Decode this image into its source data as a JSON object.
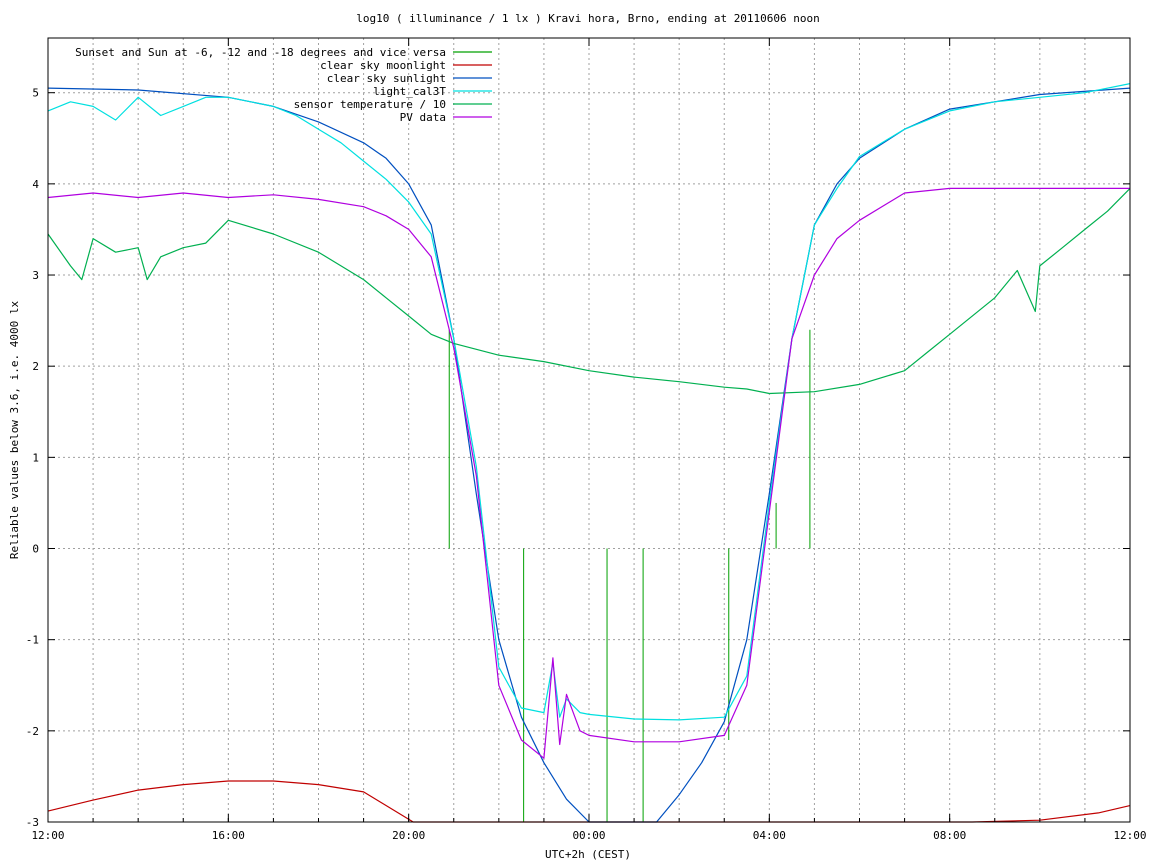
{
  "chart_data": {
    "type": "line",
    "title": "log10 ( illuminance / 1 lx ) Kravi hora, Brno, ending at 20110606 noon",
    "xlabel": "UTC+2h (CEST)",
    "ylabel": "Reliable values below 3.6, i.e. 4000 lx",
    "xlim": [
      0,
      24
    ],
    "ylim": [
      -3,
      5.6
    ],
    "grid": true,
    "legend_position": "top-left",
    "x_ticks": [
      {
        "value": 0,
        "label": "12:00"
      },
      {
        "value": 4,
        "label": "16:00"
      },
      {
        "value": 8,
        "label": "20:00"
      },
      {
        "value": 12,
        "label": "00:00"
      },
      {
        "value": 16,
        "label": "04:00"
      },
      {
        "value": 20,
        "label": "08:00"
      },
      {
        "value": 24,
        "label": "12:00"
      }
    ],
    "y_ticks": [
      {
        "value": 5,
        "label": "5"
      },
      {
        "value": 4,
        "label": "4"
      },
      {
        "value": 3,
        "label": "3"
      },
      {
        "value": 2,
        "label": "2"
      },
      {
        "value": 1,
        "label": "1"
      },
      {
        "value": 0,
        "label": "0"
      },
      {
        "value": -1,
        "label": "-1"
      },
      {
        "value": -2,
        "label": "-2"
      },
      {
        "value": -3,
        "label": "-3"
      }
    ],
    "x_minor_grid_step": 1,
    "series": [
      {
        "name": "Sunset and Sun at -6, -12 and -18 degrees and vice versa",
        "color": "#00a000",
        "style": "impulses",
        "x": [
          8.9,
          10.55,
          12.4,
          13.2,
          15.1,
          16.15,
          16.9
        ],
        "values": [
          0,
          0,
          0,
          0,
          0,
          0,
          0
        ],
        "tops": [
          2.4,
          0,
          0,
          0,
          0,
          0.5,
          2.4
        ],
        "bottoms": [
          0,
          -3,
          -3,
          -3,
          -2.1,
          0,
          0
        ]
      },
      {
        "name": "clear sky moonlight",
        "color": "#c00000",
        "style": "line",
        "x": [
          0,
          1,
          2,
          3,
          4,
          5,
          6,
          7,
          8.1,
          20.5,
          22,
          23.3,
          24
        ],
        "values": [
          -2.88,
          -2.76,
          -2.65,
          -2.59,
          -2.55,
          -2.55,
          -2.59,
          -2.67,
          -3.0,
          -3.0,
          -2.98,
          -2.9,
          -2.82
        ]
      },
      {
        "name": "clear sky sunlight",
        "color": "#0050c0",
        "style": "line",
        "x": [
          0,
          2,
          4,
          5,
          6,
          7,
          7.5,
          8,
          8.5,
          9,
          9.5,
          10,
          10.5,
          11,
          11.5,
          12,
          12.4,
          13.5,
          14,
          14.5,
          15,
          15.5,
          16,
          16.5,
          17,
          17.5,
          18,
          19,
          20,
          22,
          24
        ],
        "values": [
          5.05,
          5.03,
          4.95,
          4.85,
          4.68,
          4.45,
          4.28,
          4.0,
          3.55,
          2.3,
          0.6,
          -1.0,
          -1.85,
          -2.35,
          -2.75,
          -3.0,
          -3.0,
          -3.0,
          -2.7,
          -2.35,
          -1.9,
          -1.0,
          0.6,
          2.3,
          3.55,
          4.0,
          4.28,
          4.6,
          4.82,
          4.98,
          5.05
        ]
      },
      {
        "name": "light_cal3T",
        "color": "#00e0e0",
        "style": "line",
        "x": [
          0,
          0.5,
          1,
          1.5,
          2,
          2.5,
          3,
          3.5,
          4,
          4.5,
          5,
          5.5,
          6,
          6.5,
          7,
          7.5,
          8,
          8.5,
          9,
          9.5,
          10,
          10.5,
          11,
          11.2,
          11.35,
          11.5,
          11.8,
          12,
          13,
          14,
          15,
          15.5,
          16,
          16.5,
          17,
          17.5,
          18,
          18.5,
          19,
          20,
          21,
          22,
          23,
          24
        ],
        "values": [
          4.8,
          4.9,
          4.85,
          4.7,
          4.95,
          4.75,
          4.85,
          4.95,
          4.95,
          4.9,
          4.85,
          4.75,
          4.6,
          4.45,
          4.25,
          4.05,
          3.8,
          3.45,
          2.3,
          0.9,
          -1.3,
          -1.75,
          -1.8,
          -1.25,
          -1.85,
          -1.65,
          -1.8,
          -1.82,
          -1.87,
          -1.88,
          -1.85,
          -1.4,
          0.5,
          2.3,
          3.55,
          3.95,
          4.3,
          4.45,
          4.6,
          4.8,
          4.9,
          4.95,
          5.0,
          5.1
        ]
      },
      {
        "name": "sensor temperature / 10",
        "color": "#00b050",
        "style": "line",
        "x": [
          0,
          0.5,
          0.75,
          1,
          1.5,
          2,
          2.2,
          2.5,
          3,
          3.5,
          4,
          5,
          6,
          6.5,
          7,
          7.5,
          8,
          8.5,
          9,
          10,
          11,
          12,
          13,
          14,
          15,
          15.5,
          16,
          17,
          18,
          19,
          19.5,
          20,
          21,
          21.5,
          21.9,
          22,
          22.5,
          23,
          23.5,
          24
        ],
        "values": [
          3.45,
          3.1,
          2.95,
          3.4,
          3.25,
          3.3,
          2.95,
          3.2,
          3.3,
          3.35,
          3.6,
          3.45,
          3.25,
          3.1,
          2.95,
          2.75,
          2.55,
          2.35,
          2.25,
          2.12,
          2.05,
          1.95,
          1.88,
          1.83,
          1.77,
          1.75,
          1.7,
          1.72,
          1.8,
          1.95,
          2.15,
          2.35,
          2.75,
          3.05,
          2.6,
          3.1,
          3.3,
          3.5,
          3.7,
          3.95
        ]
      },
      {
        "name": "PV data",
        "color": "#b000e0",
        "style": "line",
        "x": [
          0,
          1,
          2,
          3,
          4,
          5,
          6,
          7,
          7.5,
          8,
          8.5,
          9,
          9.5,
          10,
          10.5,
          11,
          11.2,
          11.35,
          11.5,
          11.8,
          12,
          13,
          14,
          15,
          15.5,
          16,
          16.5,
          17,
          17.5,
          18,
          19,
          20,
          21,
          22,
          23,
          24
        ],
        "values": [
          3.85,
          3.9,
          3.85,
          3.9,
          3.85,
          3.88,
          3.83,
          3.75,
          3.65,
          3.5,
          3.2,
          2.2,
          0.8,
          -1.5,
          -2.1,
          -2.3,
          -1.2,
          -2.15,
          -1.6,
          -2.0,
          -2.05,
          -2.12,
          -2.12,
          -2.05,
          -1.5,
          0.4,
          2.3,
          3.0,
          3.4,
          3.6,
          3.9,
          3.95,
          3.95,
          3.95,
          3.95,
          3.95
        ]
      }
    ]
  }
}
